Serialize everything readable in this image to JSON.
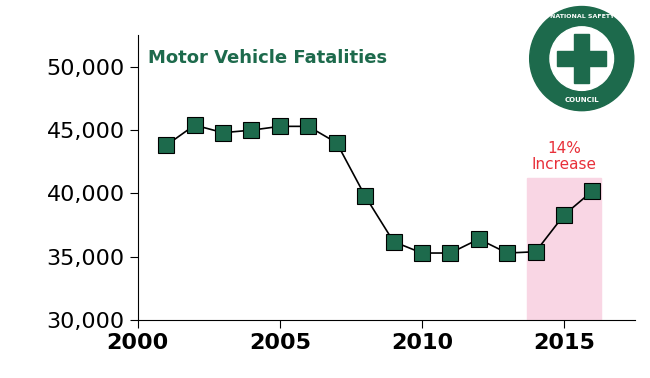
{
  "chart_data": {
    "type": "line",
    "title": "Motor Vehicle Fatalities",
    "x": [
      2001,
      2002,
      2003,
      2004,
      2005,
      2006,
      2007,
      2008,
      2009,
      2010,
      2011,
      2012,
      2013,
      2014,
      2015,
      2016
    ],
    "values": [
      43800,
      45400,
      44800,
      45000,
      45300,
      45300,
      44000,
      39800,
      36200,
      35300,
      35300,
      36400,
      35300,
      35400,
      38300,
      40200
    ],
    "color": "#1d6a4c",
    "marker": "square",
    "line_style": "solid",
    "xlim": [
      2000,
      2017.5
    ],
    "xticks": [
      2000,
      2005,
      2010,
      2015
    ],
    "ylim": [
      30000,
      52500
    ],
    "yticks": [
      {
        "value": 30000,
        "label": "30,000"
      },
      {
        "value": 35000,
        "label": "35,000"
      },
      {
        "value": 40000,
        "label": "40,000"
      },
      {
        "value": 45000,
        "label": "45,000"
      },
      {
        "value": 50000,
        "label": "50,000"
      }
    ],
    "grid": false,
    "annotation": "14%\nIncrease",
    "logo": {
      "top": "NATIONAL SAFETY",
      "bottom": "COUNCIL"
    }
  }
}
